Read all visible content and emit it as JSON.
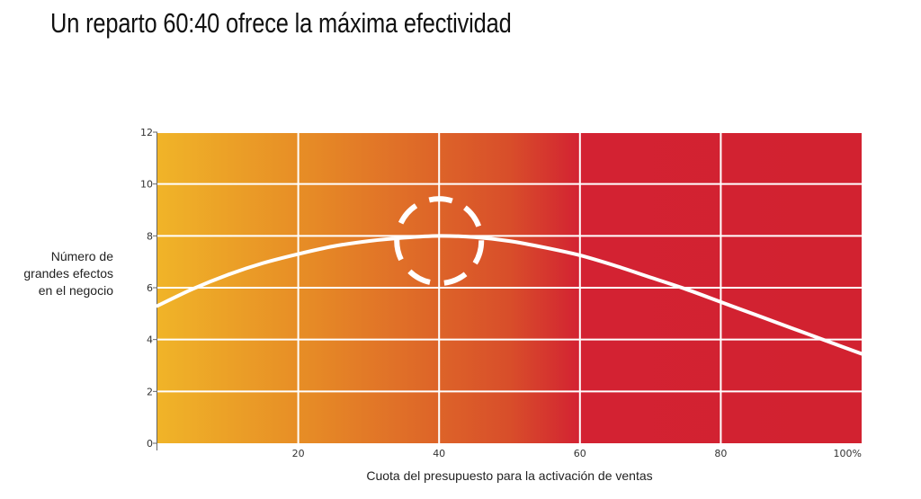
{
  "title": "Un reparto 60:40 ofrece la máxima efectividad",
  "chart_data": {
    "type": "line",
    "title": "Un reparto 60:40 ofrece la máxima efectividad",
    "xlabel": "Cuota del presupuesto para la activación de ventas",
    "ylabel_lines": [
      "Número de",
      "grandes efectos",
      "en el negocio"
    ],
    "xlim": [
      0,
      100
    ],
    "ylim": [
      0,
      12
    ],
    "x_ticks": [
      20,
      40,
      60,
      80,
      100
    ],
    "x_tick_labels": [
      "20",
      "40",
      "60",
      "80",
      "100%"
    ],
    "y_ticks": [
      0,
      2,
      4,
      6,
      8,
      10,
      12
    ],
    "y_tick_labels": [
      "0",
      "2",
      "4",
      "6",
      "8",
      "10",
      "12"
    ],
    "grid": true,
    "series": [
      {
        "x": [
          0,
          5,
          10,
          15,
          20,
          25,
          30,
          35,
          40,
          45,
          50,
          55,
          60,
          65,
          70,
          75,
          80,
          85,
          90,
          95,
          100
        ],
        "y": [
          5.3,
          5.95,
          6.5,
          6.95,
          7.3,
          7.6,
          7.8,
          7.93,
          8.0,
          7.95,
          7.8,
          7.55,
          7.25,
          6.85,
          6.4,
          5.95,
          5.45,
          4.95,
          4.45,
          3.95,
          3.45
        ]
      }
    ],
    "annotations": [
      {
        "type": "dashed-circle",
        "x": 40,
        "y": 7.8
      }
    ],
    "background_gradient": [
      "#f0b428",
      "#e68a26",
      "#d84e2a",
      "#d32232",
      "#d22230"
    ],
    "line_color": "#ffffff"
  }
}
